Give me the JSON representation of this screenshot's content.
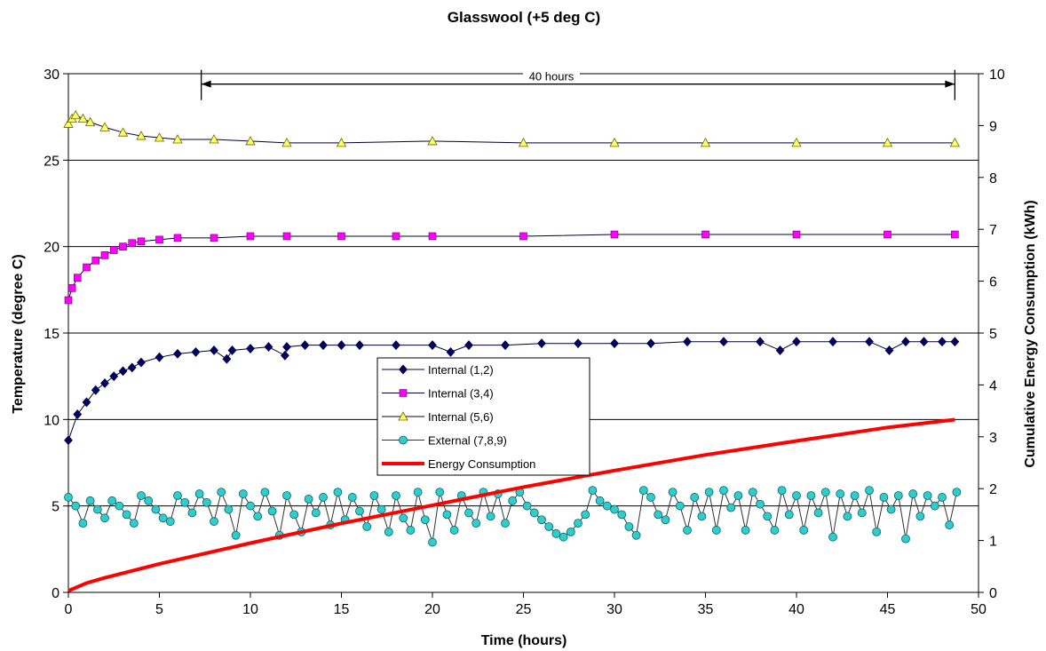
{
  "chart_data": {
    "type": "line",
    "title": "Glasswool (+5 deg C)",
    "xlabel": "Time (hours)",
    "ylabel": "Temperature (degree C)",
    "y2label": "Cumulative Energy Consumption (kWh)",
    "xlim": [
      0,
      50
    ],
    "ylim": [
      0,
      30
    ],
    "y2lim": [
      0,
      10
    ],
    "x_ticks": [
      "0",
      "5",
      "10",
      "15",
      "20",
      "25",
      "30",
      "35",
      "40",
      "45",
      "50"
    ],
    "y_ticks": [
      "0",
      "5",
      "10",
      "15",
      "20",
      "25",
      "30"
    ],
    "y2_ticks": [
      "0",
      "1",
      "2",
      "3",
      "4",
      "5",
      "6",
      "7",
      "8",
      "9",
      "10"
    ],
    "grid": "horizontal major gridlines on left axis",
    "legend_position": "center",
    "annotation": {
      "text": "40 hours",
      "x_start": 7.3,
      "x_end": 48.7,
      "y": 29.4
    },
    "series": [
      {
        "name": "Internal (1,2)",
        "axis": "left",
        "marker": "diamond",
        "color": "#000066",
        "x": [
          0,
          0.5,
          1,
          1.5,
          2,
          2.5,
          3,
          3.5,
          4,
          5,
          6,
          7,
          8,
          8.7,
          9,
          10,
          11,
          11.9,
          12,
          13,
          14,
          15,
          16,
          18,
          20,
          21,
          22,
          24,
          26,
          28,
          30,
          32,
          34,
          36,
          38,
          39.1,
          40,
          42,
          44,
          45.1,
          46,
          47,
          48,
          48.7
        ],
        "values": [
          8.8,
          10.3,
          11.0,
          11.7,
          12.1,
          12.5,
          12.8,
          13.0,
          13.3,
          13.6,
          13.8,
          13.9,
          14.0,
          13.5,
          14.0,
          14.1,
          14.2,
          13.7,
          14.2,
          14.3,
          14.3,
          14.3,
          14.3,
          14.3,
          14.3,
          13.9,
          14.3,
          14.3,
          14.4,
          14.4,
          14.4,
          14.4,
          14.5,
          14.5,
          14.5,
          14.0,
          14.5,
          14.5,
          14.5,
          14.0,
          14.5,
          14.5,
          14.5,
          14.5
        ]
      },
      {
        "name": "Internal (3,4)",
        "axis": "left",
        "marker": "square",
        "color": "#ff00ff",
        "x": [
          0,
          0.2,
          0.5,
          1,
          1.5,
          2,
          2.5,
          3,
          3.5,
          4,
          5,
          6,
          8,
          10,
          12,
          15,
          18,
          20,
          25,
          30,
          35,
          40,
          45,
          48.7
        ],
        "values": [
          16.9,
          17.6,
          18.2,
          18.8,
          19.2,
          19.5,
          19.8,
          20.0,
          20.2,
          20.3,
          20.4,
          20.5,
          20.5,
          20.6,
          20.6,
          20.6,
          20.6,
          20.6,
          20.6,
          20.7,
          20.7,
          20.7,
          20.7,
          20.7
        ]
      },
      {
        "name": "Internal (5,6)",
        "axis": "left",
        "marker": "triangle",
        "color": "#ffff66",
        "x": [
          0,
          0.2,
          0.4,
          0.8,
          1.2,
          2,
          3,
          4,
          5,
          6,
          8,
          10,
          12,
          15,
          20,
          25,
          30,
          35,
          40,
          45,
          48.7
        ],
        "values": [
          27.1,
          27.4,
          27.6,
          27.4,
          27.2,
          26.9,
          26.6,
          26.4,
          26.3,
          26.2,
          26.2,
          26.1,
          26.0,
          26.0,
          26.1,
          26.0,
          26.0,
          26.0,
          26.0,
          26.0,
          26.0
        ]
      },
      {
        "name": "External (7,8,9)",
        "axis": "left",
        "marker": "circle",
        "color": "#33cccc",
        "x": [
          0,
          0.4,
          0.8,
          1.2,
          1.6,
          2,
          2.4,
          2.8,
          3.2,
          3.6,
          4,
          4.4,
          4.8,
          5.2,
          5.6,
          6,
          6.4,
          6.8,
          7.2,
          7.6,
          8,
          8.4,
          8.8,
          9.2,
          9.6,
          10,
          10.4,
          10.8,
          11.2,
          11.6,
          12,
          12.4,
          12.8,
          13.2,
          13.6,
          14,
          14.4,
          14.8,
          15.2,
          15.6,
          16,
          16.4,
          16.8,
          17.2,
          17.6,
          18,
          18.4,
          18.8,
          19.2,
          19.6,
          20,
          20.4,
          20.8,
          21.2,
          21.6,
          22,
          22.4,
          22.8,
          23.2,
          23.6,
          24,
          24.4,
          24.8,
          25.2,
          25.6,
          26,
          26.4,
          26.8,
          27.2,
          27.6,
          28,
          28.4,
          28.8,
          29.2,
          29.6,
          30,
          30.4,
          30.8,
          31.2,
          31.6,
          32,
          32.4,
          32.8,
          33.2,
          33.6,
          34,
          34.4,
          34.8,
          35.2,
          35.6,
          36,
          36.4,
          36.8,
          37.2,
          37.6,
          38,
          38.4,
          38.8,
          39.2,
          39.6,
          40,
          40.4,
          40.8,
          41.2,
          41.6,
          42,
          42.4,
          42.8,
          43.2,
          43.6,
          44,
          44.4,
          44.8,
          45.2,
          45.6,
          46,
          46.4,
          46.8,
          47.2,
          47.6,
          48,
          48.4,
          48.8
        ],
        "values": [
          5.5,
          5.0,
          4.0,
          5.3,
          4.8,
          4.3,
          5.3,
          5.0,
          4.5,
          4.0,
          5.6,
          5.3,
          4.8,
          4.3,
          4.1,
          5.6,
          5.2,
          4.6,
          5.7,
          5.2,
          4.1,
          5.8,
          4.8,
          3.3,
          5.7,
          5.0,
          4.4,
          5.8,
          4.7,
          3.3,
          5.6,
          4.5,
          3.5,
          5.4,
          4.6,
          5.5,
          3.9,
          5.8,
          4.2,
          5.5,
          4.7,
          3.8,
          5.6,
          4.8,
          3.5,
          5.6,
          4.3,
          3.6,
          5.8,
          4.2,
          2.9,
          5.8,
          4.5,
          3.6,
          5.6,
          4.6,
          4.0,
          5.8,
          4.4,
          5.7,
          4.0,
          5.3,
          5.8,
          5.0,
          4.6,
          4.2,
          3.8,
          3.4,
          3.2,
          3.5,
          4.0,
          4.5,
          5.9,
          5.3,
          5.0,
          4.8,
          4.5,
          3.8,
          3.3,
          5.9,
          5.5,
          4.5,
          4.2,
          5.8,
          5.0,
          3.6,
          5.5,
          4.4,
          5.8,
          3.6,
          5.9,
          4.9,
          5.6,
          3.6,
          5.8,
          5.1,
          4.4,
          3.6,
          5.9,
          4.5,
          5.6,
          3.6,
          5.6,
          4.6,
          5.8,
          3.2,
          5.7,
          4.4,
          5.6,
          4.6,
          5.9,
          3.5,
          5.5,
          4.8,
          5.6,
          3.1,
          5.7,
          4.4,
          5.6,
          5.0,
          5.5,
          3.9,
          5.8
        ]
      },
      {
        "name": "Energy Consumption",
        "axis": "right",
        "marker": "none",
        "color": "#ff0000",
        "x": [
          0,
          1,
          2,
          5,
          10,
          15,
          20,
          25,
          30,
          35,
          40,
          45,
          48.7
        ],
        "values": [
          0.03,
          0.18,
          0.28,
          0.55,
          0.95,
          1.33,
          1.68,
          2.03,
          2.35,
          2.65,
          2.92,
          3.18,
          3.33
        ]
      }
    ]
  }
}
